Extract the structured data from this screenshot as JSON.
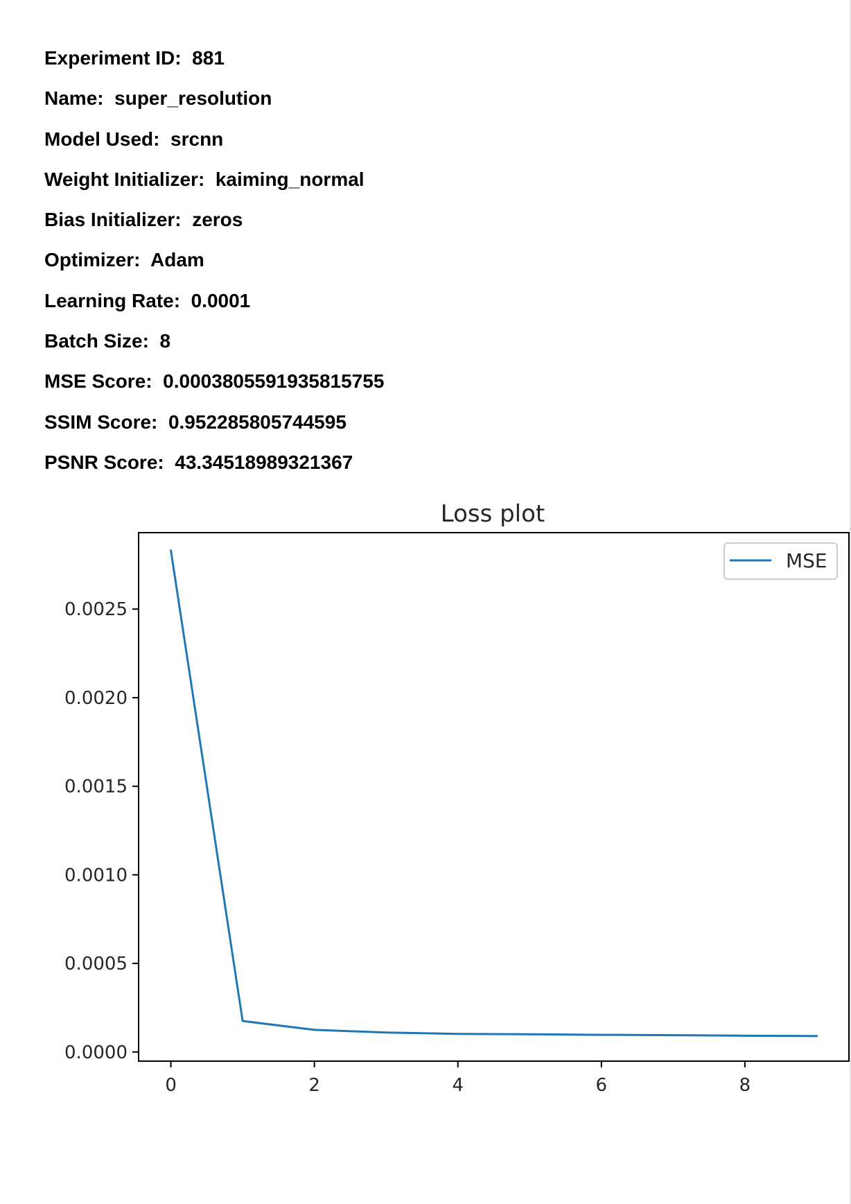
{
  "info": [
    {
      "label": "Experiment ID:",
      "value": "881"
    },
    {
      "label": "Name:",
      "value": "super_resolution"
    },
    {
      "label": "Model Used:",
      "value": "srcnn"
    },
    {
      "label": "Weight Initializer:",
      "value": "kaiming_normal"
    },
    {
      "label": "Bias Initializer:",
      "value": "zeros"
    },
    {
      "label": "Optimizer:",
      "value": "Adam"
    },
    {
      "label": "Learning Rate:",
      "value": "0.0001"
    },
    {
      "label": "Batch Size:",
      "value": "8"
    },
    {
      "label": "MSE Score:",
      "value": "0.0003805591935815755"
    },
    {
      "label": "SSIM Score:",
      "value": "0.952285805744595"
    },
    {
      "label": "PSNR Score:",
      "value": "43.34518989321367"
    }
  ],
  "chart_data": {
    "type": "line",
    "title": "Loss plot",
    "xlabel": "",
    "ylabel": "",
    "x": [
      0,
      1,
      2,
      3,
      4,
      5,
      6,
      7,
      8,
      9
    ],
    "series": [
      {
        "name": "MSE",
        "color": "#1f77b4",
        "values": [
          0.00283,
          0.000175,
          0.000125,
          0.00011,
          0.000102,
          0.0001,
          9.7e-05,
          9.5e-05,
          9.2e-05,
          9e-05
        ]
      }
    ],
    "xticks": [
      0,
      2,
      4,
      6,
      8
    ],
    "xtick_labels": [
      "0",
      "2",
      "4",
      "6",
      "8"
    ],
    "yticks": [
      0.0,
      0.0005,
      0.001,
      0.0015,
      0.002,
      0.0025
    ],
    "ytick_labels": [
      "0.0000",
      "0.0005",
      "0.0010",
      "0.0015",
      "0.0020",
      "0.0025"
    ],
    "xlim": [
      -0.45,
      9.45
    ],
    "ylim": [
      -5.15e-05,
      0.0029315
    ],
    "grid": false,
    "legend_position": "top-right"
  }
}
